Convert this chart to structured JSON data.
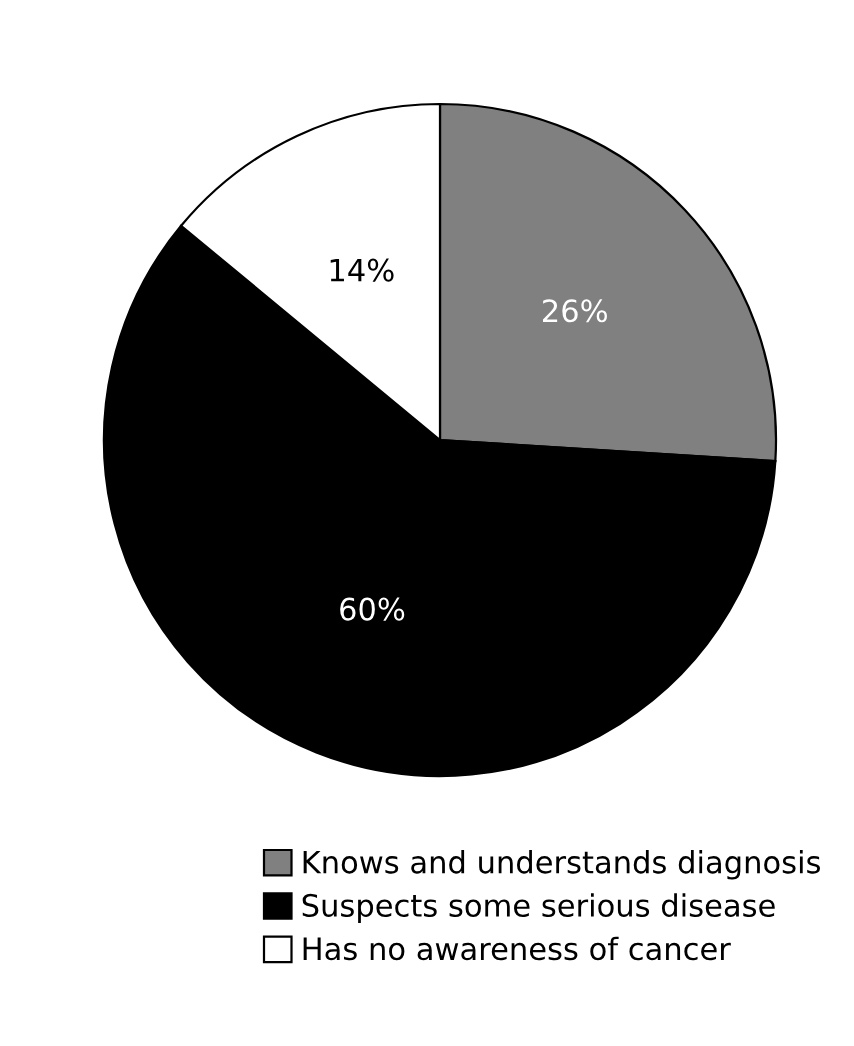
{
  "chart_data": {
    "type": "pie",
    "categories": [
      "Knows and understands diagnosis",
      "Suspects some serious disease",
      "Has no awareness of cancer"
    ],
    "values": [
      26,
      60,
      14
    ],
    "colors": [
      "#808080",
      "#000000",
      "#ffffff"
    ],
    "value_labels": [
      "26%",
      "60%",
      "14%"
    ],
    "legend": "bottom"
  }
}
